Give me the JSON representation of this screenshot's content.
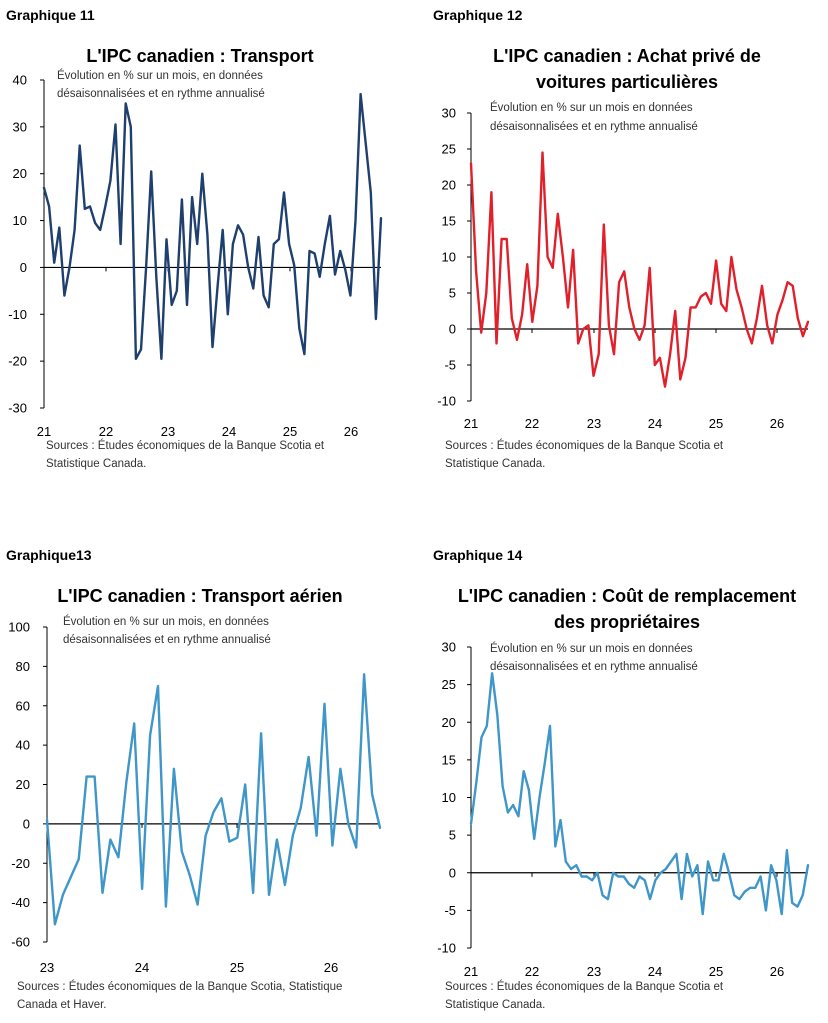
{
  "charts": [
    {
      "label": "Graphique 11",
      "title_lines": [
        "L'IPC canadien : Transport"
      ],
      "note_lines": [
        "Évolution en % sur un mois, en données",
        "désaisonnalisées et en rythme annualisé"
      ],
      "source_lines": [
        "Sources : Études économiques de la Banque Scotia et",
        "Statistique Canada."
      ],
      "chart_data": {
        "type": "line",
        "series_color": "#1f3f6e",
        "ylim": [
          -30,
          40
        ],
        "yticks": [
          "40",
          "30",
          "20",
          "10",
          "0",
          "-10",
          "-20",
          "-30"
        ],
        "xticks": [
          "21",
          "22",
          "23",
          "24",
          "25",
          "26"
        ],
        "x_start_year": 2021,
        "values": [
          17,
          13,
          1,
          8.5,
          -6,
          0,
          8,
          26,
          12.5,
          13,
          9.5,
          8,
          13,
          18.5,
          30.5,
          5,
          35,
          30,
          -19.5,
          -17.5,
          0,
          20.5,
          -2,
          -19.5,
          6,
          -8,
          -5,
          14.5,
          -8,
          15,
          5,
          20,
          7,
          -17,
          -4,
          8,
          -10,
          5,
          9,
          7,
          0,
          -4.5,
          6.5,
          -6,
          -8.5,
          5,
          6,
          16,
          5,
          0.5,
          -13,
          -18.5,
          3.5,
          3,
          -2,
          5,
          11,
          -1.5,
          3.5,
          -0.5,
          -6,
          10,
          37,
          26.5,
          16,
          -11,
          10.5
        ]
      }
    },
    {
      "label": "Graphique 12",
      "title_lines": [
        "L'IPC canadien : Achat privé de",
        "voitures particulières"
      ],
      "note_lines": [
        "Évolution en % sur un mois en données",
        "désaisonnalisées et en rythme annualisé"
      ],
      "source_lines": [
        "Sources : Études économiques de la Banque Scotia et",
        "Statistique Canada."
      ],
      "chart_data": {
        "type": "line",
        "series_color": "#e0202a",
        "ylim": [
          -10,
          30
        ],
        "yticks": [
          "30",
          "25",
          "20",
          "15",
          "10",
          "5",
          "0",
          "-5",
          "-10"
        ],
        "xticks": [
          "21",
          "22",
          "23",
          "24",
          "25",
          "26"
        ],
        "x_start_year": 2021,
        "values": [
          23,
          8,
          -0.5,
          5,
          19,
          -2,
          12.5,
          12.5,
          1.5,
          -1.5,
          2,
          9,
          1,
          6,
          24.5,
          10,
          8.5,
          16,
          10,
          3,
          11,
          -2,
          0,
          0.5,
          -6.5,
          -3.5,
          14.5,
          0.5,
          -3.5,
          6.5,
          8,
          3,
          0,
          -1.5,
          0.5,
          8.5,
          -5,
          -4,
          -8,
          -3.5,
          2.5,
          -7,
          -4,
          3,
          3,
          4.5,
          5,
          3.5,
          9.5,
          3.5,
          2.5,
          10,
          5.5,
          3,
          0,
          -2,
          1.5,
          6,
          0.5,
          -2,
          2,
          4,
          6.5,
          6,
          1.5,
          -1,
          1
        ]
      }
    },
    {
      "label": "Graphique13",
      "title_lines": [
        "L'IPC canadien : Transport aérien"
      ],
      "note_lines": [
        "Évolution en % sur un mois, en données",
        "désaisonnalisées et en rythme annualisé"
      ],
      "source_lines": [
        "Sources : Études économiques de la Banque Scotia, Statistique",
        "Canada et Haver."
      ],
      "chart_data": {
        "type": "line",
        "series_color": "#3f96c8",
        "ylim": [
          -60,
          100
        ],
        "yticks": [
          "100",
          "80",
          "60",
          "40",
          "20",
          "0",
          "-20",
          "-40",
          "-60"
        ],
        "xticks": [
          "23",
          "24",
          "25",
          "26"
        ],
        "x_start_year": 2023,
        "values": [
          2,
          -51,
          -36,
          -27,
          -18,
          24,
          24,
          -35,
          -8,
          -17,
          21,
          51,
          -33,
          45,
          70,
          -42,
          28,
          -14,
          -26,
          -41,
          -6,
          6,
          13,
          -9,
          -7,
          20,
          -35,
          46,
          -36,
          -8,
          -31,
          -6,
          8,
          34,
          -6,
          61,
          -11,
          28,
          0,
          -12,
          76,
          15,
          -2
        ]
      }
    },
    {
      "label": "Graphique 14",
      "title_lines": [
        "L'IPC canadien : Coût de remplacement",
        "des propriétaires"
      ],
      "note_lines": [
        "Évolution en % sur un mois en données",
        "désaisonnalisées et en rythme annualisé"
      ],
      "source_lines": [
        "Sources : Études économiques de la Banque Scotia et",
        "Statistique Canada."
      ],
      "chart_data": {
        "type": "line",
        "series_color": "#3f96c8",
        "ylim": [
          -10,
          30
        ],
        "yticks": [
          "30",
          "25",
          "20",
          "15",
          "10",
          "5",
          "0",
          "-5",
          "-10"
        ],
        "xticks": [
          "21",
          "22",
          "23",
          "24",
          "25",
          "26"
        ],
        "x_start_year": 2021,
        "values": [
          6.5,
          12,
          18,
          19.5,
          26.5,
          21,
          11.5,
          8,
          9,
          7.5,
          13.5,
          11,
          4.5,
          10,
          14.5,
          19.5,
          3.5,
          7,
          1.5,
          0.5,
          1,
          -0.5,
          -0.5,
          -1,
          0,
          -3,
          -3.5,
          0,
          -0.5,
          -0.5,
          -1.5,
          -2,
          -0.5,
          -1,
          -3.5,
          -1,
          0,
          0.5,
          1.5,
          2.5,
          -3.5,
          2.5,
          -0.5,
          1,
          -5.5,
          1.5,
          -1,
          -1,
          2.5,
          0,
          -3,
          -3.5,
          -2.5,
          -2,
          -2,
          -0.5,
          -5,
          1,
          -1,
          -5.5,
          3,
          -4,
          -4.5,
          -3,
          1
        ]
      }
    }
  ]
}
